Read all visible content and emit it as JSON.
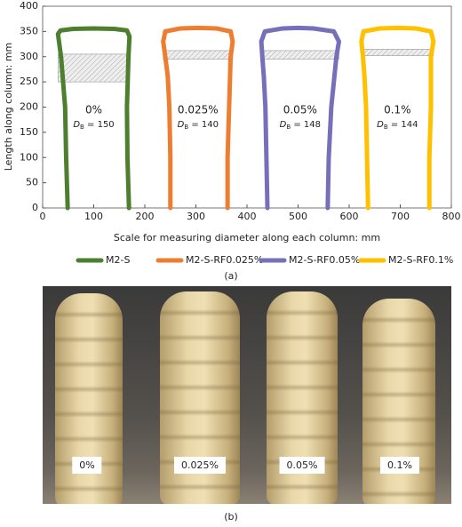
{
  "chart_data": {
    "type": "line",
    "ylabel": "Length along column: mm",
    "xlabel": "Scale for measuring diameter along each column: mm",
    "xlim": [
      0,
      800
    ],
    "xticks": [
      0,
      100,
      200,
      300,
      400,
      500,
      600,
      700,
      800
    ],
    "ylim": [
      0,
      400
    ],
    "yticks": [
      0,
      50,
      100,
      150,
      200,
      250,
      300,
      350,
      400
    ],
    "db_symbol": "D",
    "db_subscript": "B",
    "caption": "(a)",
    "series": [
      {
        "name": "M2-S",
        "color": "#4d7f2e",
        "label": "0%",
        "db_value": " = 150",
        "band": [
          250,
          305
        ],
        "x": [
          49,
          46,
          44,
          40,
          36,
          32,
          30,
          35,
          60,
          100,
          140,
          165,
          170,
          168,
          165,
          166,
          169
        ],
        "y": [
          0,
          100,
          200,
          250,
          300,
          330,
          345,
          352,
          355,
          356,
          355,
          352,
          340,
          300,
          200,
          100,
          0
        ]
      },
      {
        "name": "M2-S-RF0.025%",
        "color": "#ed7d31",
        "label": "0.025%",
        "db_value": " = 140",
        "band": [
          295,
          312
        ],
        "x": [
          250,
          250,
          248,
          245,
          240,
          236,
          240,
          270,
          305,
          340,
          368,
          372,
          368,
          365,
          362,
          362
        ],
        "y": [
          0,
          100,
          200,
          260,
          300,
          330,
          350,
          356,
          357,
          356,
          350,
          330,
          300,
          200,
          100,
          0
        ]
      },
      {
        "name": "M2-S-RF0.05%",
        "color": "#7570b8",
        "label": "0.05%",
        "db_value": " = 148",
        "band": [
          295,
          312
        ],
        "x": [
          440,
          438,
          436,
          433,
          430,
          428,
          435,
          470,
          500,
          530,
          570,
          580,
          575,
          565,
          560,
          558
        ],
        "y": [
          0,
          100,
          200,
          260,
          300,
          330,
          350,
          356,
          357,
          356,
          350,
          330,
          300,
          200,
          100,
          0
        ]
      },
      {
        "name": "M2-S-RF0.1%",
        "color": "#ffc000",
        "label": "0.1%",
        "db_value": " = 144",
        "band": [
          302,
          315
        ],
        "x": [
          637,
          635,
          633,
          630,
          627,
          624,
          628,
          660,
          695,
          730,
          760,
          765,
          760,
          760,
          757,
          757
        ],
        "y": [
          0,
          100,
          200,
          260,
          300,
          330,
          350,
          356,
          357,
          356,
          350,
          330,
          300,
          200,
          100,
          0
        ]
      }
    ]
  },
  "photo": {
    "labels": [
      "0%",
      "0.025%",
      "0.05%",
      "0.1%"
    ],
    "caption": "(b)"
  }
}
